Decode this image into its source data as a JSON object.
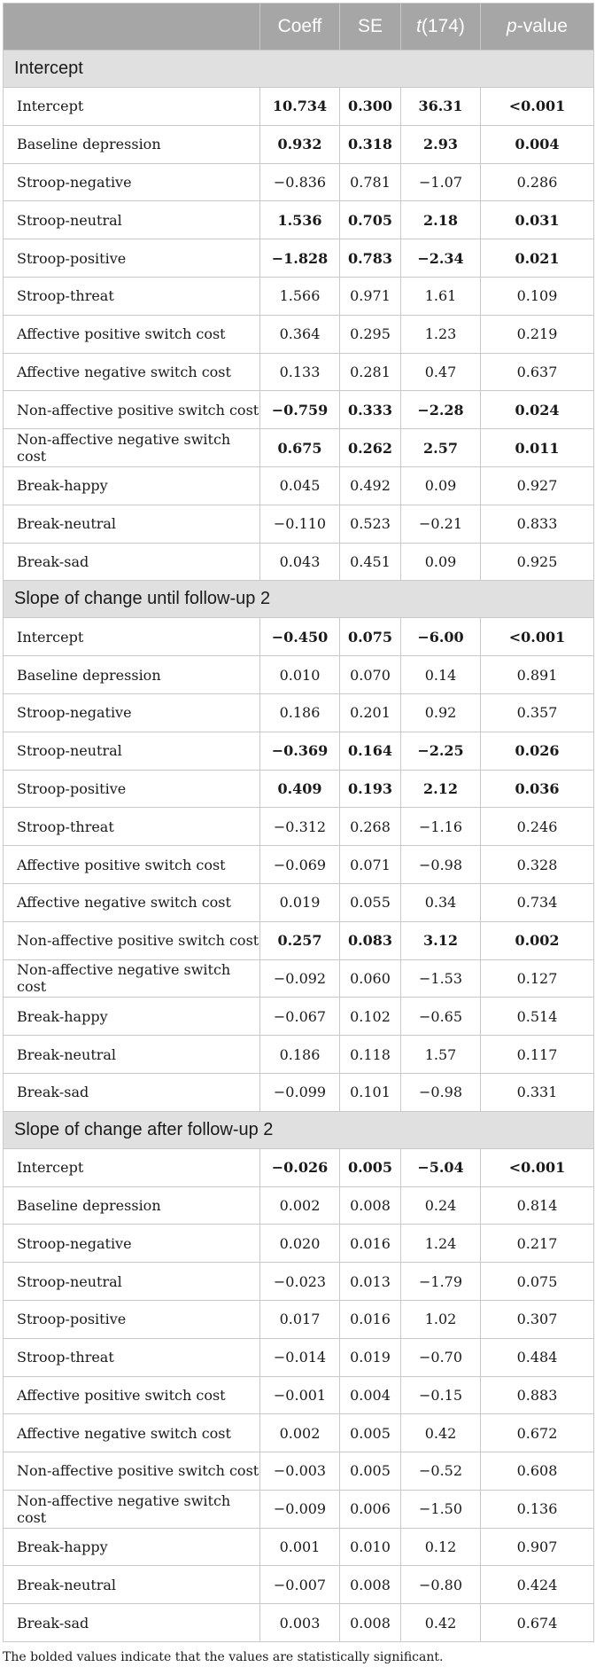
{
  "header": {
    "col_label": "",
    "coeff": "Coeff",
    "se": "SE",
    "t_italic": "t",
    "t_rest": "(174)",
    "p_italic": "p",
    "p_rest": "-value"
  },
  "sections": [
    {
      "title": "Intercept",
      "rows": [
        {
          "label": "Intercept",
          "coeff": "10.734",
          "se": "0.300",
          "t": "36.31",
          "p": "<0.001",
          "significant": true
        },
        {
          "label": "Baseline depression",
          "coeff": "0.932",
          "se": "0.318",
          "t": "2.93",
          "p": "0.004",
          "significant": true
        },
        {
          "label": "Stroop-negative",
          "coeff": "−0.836",
          "se": "0.781",
          "t": "−1.07",
          "p": "0.286",
          "significant": false
        },
        {
          "label": "Stroop-neutral",
          "coeff": "1.536",
          "se": "0.705",
          "t": "2.18",
          "p": "0.031",
          "significant": true
        },
        {
          "label": "Stroop-positive",
          "coeff": "−1.828",
          "se": "0.783",
          "t": "−2.34",
          "p": "0.021",
          "significant": true
        },
        {
          "label": "Stroop-threat",
          "coeff": "1.566",
          "se": "0.971",
          "t": "1.61",
          "p": "0.109",
          "significant": false
        },
        {
          "label": "Affective positive switch cost",
          "coeff": "0.364",
          "se": "0.295",
          "t": "1.23",
          "p": "0.219",
          "significant": false
        },
        {
          "label": "Affective negative switch cost",
          "coeff": "0.133",
          "se": "0.281",
          "t": "0.47",
          "p": "0.637",
          "significant": false
        },
        {
          "label": "Non-affective positive switch cost",
          "coeff": "−0.759",
          "se": "0.333",
          "t": "−2.28",
          "p": "0.024",
          "significant": true
        },
        {
          "label": "Non-affective negative switch cost",
          "coeff": "0.675",
          "se": "0.262",
          "t": "2.57",
          "p": "0.011",
          "significant": true
        },
        {
          "label": "Break-happy",
          "coeff": "0.045",
          "se": "0.492",
          "t": "0.09",
          "p": "0.927",
          "significant": false
        },
        {
          "label": "Break-neutral",
          "coeff": "−0.110",
          "se": "0.523",
          "t": "−0.21",
          "p": "0.833",
          "significant": false
        },
        {
          "label": "Break-sad",
          "coeff": "0.043",
          "se": "0.451",
          "t": "0.09",
          "p": "0.925",
          "significant": false
        }
      ]
    },
    {
      "title": "Slope of change until follow-up 2",
      "rows": [
        {
          "label": "Intercept",
          "coeff": "−0.450",
          "se": "0.075",
          "t": "−6.00",
          "p": "<0.001",
          "significant": true
        },
        {
          "label": "Baseline depression",
          "coeff": "0.010",
          "se": "0.070",
          "t": "0.14",
          "p": "0.891",
          "significant": false
        },
        {
          "label": "Stroop-negative",
          "coeff": "0.186",
          "se": "0.201",
          "t": "0.92",
          "p": "0.357",
          "significant": false
        },
        {
          "label": "Stroop-neutral",
          "coeff": "−0.369",
          "se": "0.164",
          "t": "−2.25",
          "p": "0.026",
          "significant": true
        },
        {
          "label": "Stroop-positive",
          "coeff": "0.409",
          "se": "0.193",
          "t": "2.12",
          "p": "0.036",
          "significant": true
        },
        {
          "label": "Stroop-threat",
          "coeff": "−0.312",
          "se": "0.268",
          "t": "−1.16",
          "p": "0.246",
          "significant": false
        },
        {
          "label": "Affective positive switch cost",
          "coeff": "−0.069",
          "se": "0.071",
          "t": "−0.98",
          "p": "0.328",
          "significant": false
        },
        {
          "label": "Affective negative switch cost",
          "coeff": "0.019",
          "se": "0.055",
          "t": "0.34",
          "p": "0.734",
          "significant": false
        },
        {
          "label": "Non-affective positive switch cost",
          "coeff": "0.257",
          "se": "0.083",
          "t": "3.12",
          "p": "0.002",
          "significant": true
        },
        {
          "label": "Non-affective negative switch cost",
          "coeff": "−0.092",
          "se": "0.060",
          "t": "−1.53",
          "p": "0.127",
          "significant": false
        },
        {
          "label": "Break-happy",
          "coeff": "−0.067",
          "se": "0.102",
          "t": "−0.65",
          "p": "0.514",
          "significant": false
        },
        {
          "label": "Break-neutral",
          "coeff": "0.186",
          "se": "0.118",
          "t": "1.57",
          "p": "0.117",
          "significant": false
        },
        {
          "label": "Break-sad",
          "coeff": "−0.099",
          "se": "0.101",
          "t": "−0.98",
          "p": "0.331",
          "significant": false
        }
      ]
    },
    {
      "title": "Slope of change after follow-up 2",
      "rows": [
        {
          "label": "Intercept",
          "coeff": "−0.026",
          "se": "0.005",
          "t": "−5.04",
          "p": "<0.001",
          "significant": true
        },
        {
          "label": "Baseline depression",
          "coeff": "0.002",
          "se": "0.008",
          "t": "0.24",
          "p": "0.814",
          "significant": false
        },
        {
          "label": "Stroop-negative",
          "coeff": "0.020",
          "se": "0.016",
          "t": "1.24",
          "p": "0.217",
          "significant": false
        },
        {
          "label": "Stroop-neutral",
          "coeff": "−0.023",
          "se": "0.013",
          "t": "−1.79",
          "p": "0.075",
          "significant": false
        },
        {
          "label": "Stroop-positive",
          "coeff": "0.017",
          "se": "0.016",
          "t": "1.02",
          "p": "0.307",
          "significant": false
        },
        {
          "label": "Stroop-threat",
          "coeff": "−0.014",
          "se": "0.019",
          "t": "−0.70",
          "p": "0.484",
          "significant": false
        },
        {
          "label": "Affective positive switch cost",
          "coeff": "−0.001",
          "se": "0.004",
          "t": "−0.15",
          "p": "0.883",
          "significant": false
        },
        {
          "label": "Affective negative switch cost",
          "coeff": "0.002",
          "se": "0.005",
          "t": "0.42",
          "p": "0.672",
          "significant": false
        },
        {
          "label": "Non-affective positive switch cost",
          "coeff": "−0.003",
          "se": "0.005",
          "t": "−0.52",
          "p": "0.608",
          "significant": false
        },
        {
          "label": "Non-affective negative switch cost",
          "coeff": "−0.009",
          "se": "0.006",
          "t": "−1.50",
          "p": "0.136",
          "significant": false
        },
        {
          "label": "Break-happy",
          "coeff": "0.001",
          "se": "0.010",
          "t": "0.12",
          "p": "0.907",
          "significant": false
        },
        {
          "label": "Break-neutral",
          "coeff": "−0.007",
          "se": "0.008",
          "t": "−0.80",
          "p": "0.424",
          "significant": false
        },
        {
          "label": "Break-sad",
          "coeff": "0.003",
          "se": "0.008",
          "t": "0.42",
          "p": "0.674",
          "significant": false
        }
      ]
    }
  ],
  "footnote": "The bolded values indicate that the values are statistically significant."
}
